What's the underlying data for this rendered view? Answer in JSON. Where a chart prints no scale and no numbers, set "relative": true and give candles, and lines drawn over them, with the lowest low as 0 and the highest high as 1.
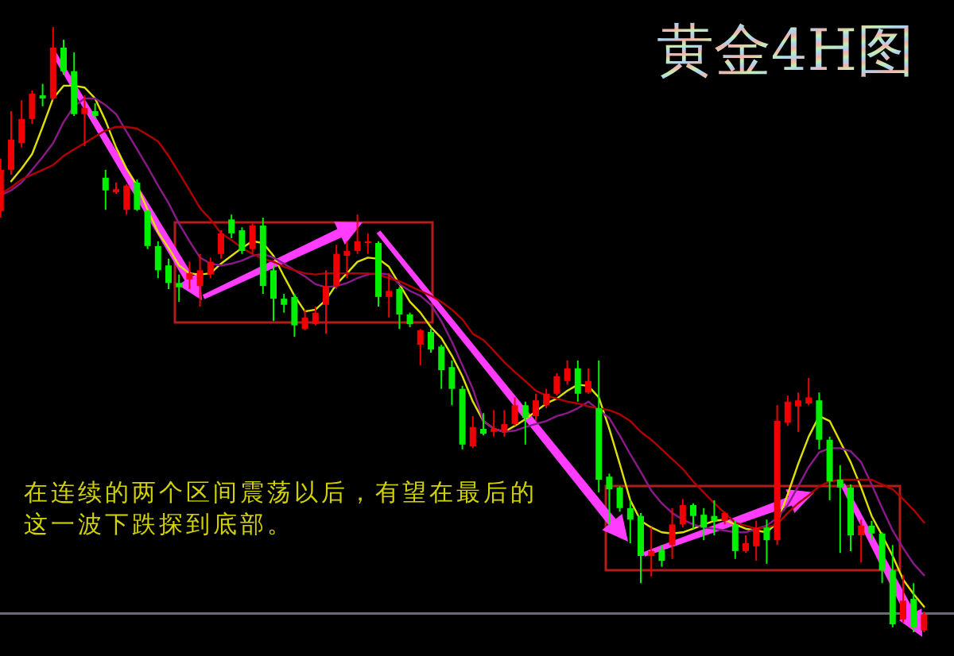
{
  "chart_data": {
    "type": "candlestick",
    "title": "黄金4H图",
    "relative": true,
    "categories": [
      null,
      null,
      null,
      null,
      null,
      null,
      null,
      null,
      null,
      null,
      null,
      null,
      null,
      null,
      null,
      null,
      null,
      null,
      null,
      null,
      null,
      null,
      null,
      null,
      null,
      null,
      null,
      null,
      null,
      null,
      null,
      null,
      null,
      null,
      null,
      null,
      null,
      null,
      null,
      null,
      null,
      null,
      null,
      null,
      null,
      null,
      null,
      null,
      null,
      null,
      null,
      null,
      null,
      null,
      null,
      null,
      null,
      null,
      null,
      null,
      null,
      null,
      null,
      null,
      null,
      null,
      null,
      null,
      null,
      null,
      null,
      null,
      null,
      null,
      null,
      null,
      null,
      null,
      null,
      null,
      null,
      null,
      null,
      null,
      null,
      null,
      null,
      null,
      null
    ],
    "ohlc": [
      [
        0.696,
        0.782,
        0.685,
        0.764
      ],
      [
        0.764,
        0.861,
        0.756,
        0.814
      ],
      [
        0.808,
        0.879,
        0.801,
        0.848
      ],
      [
        0.848,
        0.895,
        0.84,
        0.89
      ],
      [
        0.887,
        0.906,
        0.869,
        0.882
      ],
      [
        0.882,
        1.0,
        0.879,
        0.966
      ],
      [
        0.966,
        0.979,
        0.921,
        0.927
      ],
      [
        0.927,
        0.958,
        0.853,
        0.856
      ],
      [
        0.856,
        0.887,
        0.803,
        0.866
      ],
      [
        0.861,
        0.874,
        0.848,
        0.853
      ],
      [
        0.751,
        0.764,
        0.698,
        0.73
      ],
      [
        0.727,
        0.743,
        0.724,
        0.732
      ],
      [
        0.698,
        0.74,
        0.69,
        0.738
      ],
      [
        0.743,
        0.748,
        0.696,
        0.698
      ],
      [
        0.696,
        0.698,
        0.633,
        0.638
      ],
      [
        0.638,
        0.646,
        0.585,
        0.598
      ],
      [
        0.606,
        0.617,
        0.567,
        0.577
      ],
      [
        0.577,
        0.591,
        0.546,
        0.57
      ],
      [
        0.583,
        0.612,
        0.567,
        0.593
      ],
      [
        0.572,
        0.625,
        0.538,
        0.598
      ],
      [
        0.591,
        0.619,
        0.585,
        0.612
      ],
      [
        0.625,
        0.664,
        0.617,
        0.659
      ],
      [
        0.682,
        0.69,
        0.651,
        0.659
      ],
      [
        0.664,
        0.669,
        0.625,
        0.63
      ],
      [
        0.633,
        0.677,
        0.625,
        0.672
      ],
      [
        0.672,
        0.685,
        0.559,
        0.572
      ],
      [
        0.598,
        0.606,
        0.514,
        0.551
      ],
      [
        0.551,
        0.559,
        0.528,
        0.541
      ],
      [
        0.554,
        0.559,
        0.488,
        0.507
      ],
      [
        0.501,
        0.533,
        0.499,
        0.52
      ],
      [
        0.509,
        0.538,
        0.507,
        0.528
      ],
      [
        0.541,
        0.598,
        0.493,
        0.572
      ],
      [
        0.572,
        0.64,
        0.567,
        0.625
      ],
      [
        0.622,
        0.646,
        0.585,
        0.63
      ],
      [
        0.63,
        0.69,
        0.625,
        0.646
      ],
      [
        0.643,
        0.659,
        0.625,
        0.646
      ],
      [
        0.643,
        0.646,
        0.538,
        0.554
      ],
      [
        0.554,
        0.593,
        0.52,
        0.564
      ],
      [
        0.567,
        0.57,
        0.501,
        0.525
      ],
      [
        0.525,
        0.528,
        0.504,
        0.509
      ],
      [
        0.475,
        0.501,
        0.441,
        0.499
      ],
      [
        0.496,
        0.501,
        0.462,
        0.467
      ],
      [
        0.472,
        0.475,
        0.402,
        0.433
      ],
      [
        0.438,
        0.449,
        0.375,
        0.402
      ],
      [
        0.402,
        0.407,
        0.302,
        0.31
      ],
      [
        0.307,
        0.357,
        0.304,
        0.339
      ],
      [
        0.336,
        0.362,
        0.325,
        0.328
      ],
      [
        0.331,
        0.367,
        0.323,
        0.336
      ],
      [
        0.331,
        0.367,
        0.323,
        0.344
      ],
      [
        0.344,
        0.388,
        0.341,
        0.375
      ],
      [
        0.375,
        0.381,
        0.31,
        0.354
      ],
      [
        0.357,
        0.394,
        0.349,
        0.383
      ],
      [
        0.375,
        0.402,
        0.37,
        0.394
      ],
      [
        0.394,
        0.428,
        0.391,
        0.423
      ],
      [
        0.415,
        0.449,
        0.409,
        0.436
      ],
      [
        0.436,
        0.449,
        0.381,
        0.394
      ],
      [
        0.396,
        0.436,
        0.394,
        0.415
      ],
      [
        0.37,
        0.449,
        0.231,
        0.252
      ],
      [
        0.257,
        0.262,
        0.178,
        0.236
      ],
      [
        0.239,
        0.241,
        0.199,
        0.205
      ],
      [
        0.205,
        0.218,
        0.147,
        0.186
      ],
      [
        0.192,
        0.197,
        0.081,
        0.126
      ],
      [
        0.126,
        0.173,
        0.092,
        0.134
      ],
      [
        0.136,
        0.144,
        0.108,
        0.118
      ],
      [
        0.144,
        0.205,
        0.121,
        0.178
      ],
      [
        0.178,
        0.22,
        0.173,
        0.21
      ],
      [
        0.21,
        0.213,
        0.171,
        0.192
      ],
      [
        0.194,
        0.205,
        0.152,
        0.173
      ],
      [
        0.192,
        0.218,
        0.16,
        0.184
      ],
      [
        0.184,
        0.199,
        0.178,
        0.197
      ],
      [
        0.178,
        0.184,
        0.121,
        0.134
      ],
      [
        0.134,
        0.16,
        0.131,
        0.147
      ],
      [
        0.142,
        0.184,
        0.118,
        0.173
      ],
      [
        0.173,
        0.186,
        0.113,
        0.152
      ],
      [
        0.152,
        0.375,
        0.144,
        0.349
      ],
      [
        0.346,
        0.391,
        0.341,
        0.381
      ],
      [
        0.373,
        0.396,
        0.331,
        0.383
      ],
      [
        0.378,
        0.42,
        0.375,
        0.388
      ],
      [
        0.383,
        0.396,
        0.302,
        0.318
      ],
      [
        0.318,
        0.323,
        0.218,
        0.249
      ],
      [
        0.252,
        0.276,
        0.131,
        0.239
      ],
      [
        0.239,
        0.244,
        0.134,
        0.16
      ],
      [
        0.16,
        0.186,
        0.115,
        0.176
      ],
      [
        0.176,
        0.184,
        0.152,
        0.163
      ],
      [
        0.163,
        0.165,
        0.081,
        0.102
      ],
      [
        0.102,
        0.144,
        0.008,
        0.013
      ],
      [
        0.021,
        0.094,
        0.016,
        0.052
      ],
      [
        0.055,
        0.081,
        0.0,
        0.008
      ],
      [
        0.003,
        0.034,
        0.0,
        0.029
      ]
    ],
    "colors": [
      "#f00000",
      "#f00000",
      "#f00000",
      "#f00000",
      "#00f000",
      "#f00000",
      "#00f000",
      "#00f000",
      "#f00000",
      "#00f000",
      "#00f000",
      "#f00000",
      "#f00000",
      "#00f000",
      "#00f000",
      "#00f000",
      "#00f000",
      "#00f000",
      "#f00000",
      "#f00000",
      "#f00000",
      "#f00000",
      "#00f000",
      "#00f000",
      "#f00000",
      "#00f000",
      "#00f000",
      "#00f000",
      "#00f000",
      "#f00000",
      "#f00000",
      "#f00000",
      "#f00000",
      "#f00000",
      "#f00000",
      "#f00000",
      "#00f000",
      "#f00000",
      "#00f000",
      "#00f000",
      "#f00000",
      "#00f000",
      "#00f000",
      "#00f000",
      "#00f000",
      "#f00000",
      "#00f000",
      "#f00000",
      "#f00000",
      "#f00000",
      "#00f000",
      "#f00000",
      "#f00000",
      "#f00000",
      "#f00000",
      "#00f000",
      "#f00000",
      "#00f000",
      "#00f000",
      "#00f000",
      "#00f000",
      "#00f000",
      "#f00000",
      "#00f000",
      "#f00000",
      "#f00000",
      "#00f000",
      "#00f000",
      "#00f000",
      "#f00000",
      "#00f000",
      "#f00000",
      "#f00000",
      "#00f000",
      "#f00000",
      "#f00000",
      "#f00000",
      "#f00000",
      "#00f000",
      "#00f000",
      "#00f000",
      "#00f000",
      "#f00000",
      "#00f000",
      "#00f000",
      "#00f000",
      "#f00000",
      "#00f000",
      "#f00000"
    ],
    "series": [
      {
        "type": "line",
        "color": "#e0e000",
        "values": [
          null,
          0.745,
          0.766,
          0.79,
          0.835,
          0.882,
          0.903,
          0.903,
          0.9,
          0.882,
          0.845,
          0.801,
          0.766,
          0.738,
          0.698,
          0.661,
          0.635,
          0.606,
          0.593,
          0.591,
          0.593,
          0.609,
          0.622,
          0.635,
          0.646,
          0.643,
          0.622,
          0.588,
          0.556,
          0.53,
          0.533,
          0.549,
          0.575,
          0.593,
          0.612,
          0.619,
          0.617,
          0.604,
          0.575,
          0.546,
          0.528,
          0.504,
          0.486,
          0.457,
          0.423,
          0.381,
          0.349,
          0.336,
          0.331,
          0.341,
          0.352,
          0.365,
          0.378,
          0.386,
          0.399,
          0.409,
          0.407,
          0.388,
          0.336,
          0.278,
          0.218,
          0.184,
          0.173,
          0.165,
          0.163,
          0.165,
          0.171,
          0.178,
          0.184,
          0.186,
          0.178,
          0.171,
          0.168,
          0.165,
          0.181,
          0.228,
          0.278,
          0.323,
          0.357,
          0.349,
          0.315,
          0.281,
          0.239,
          0.192,
          0.16,
          0.126,
          0.087,
          0.063,
          0.042
        ]
      },
      {
        "type": "line",
        "color": "#8a1a8a",
        "values": [
          0.722,
          0.73,
          0.743,
          0.764,
          0.785,
          0.808,
          0.843,
          0.869,
          0.882,
          0.882,
          0.871,
          0.856,
          0.827,
          0.798,
          0.769,
          0.738,
          0.709,
          0.675,
          0.646,
          0.619,
          0.609,
          0.606,
          0.609,
          0.614,
          0.622,
          0.625,
          0.619,
          0.609,
          0.598,
          0.588,
          0.575,
          0.57,
          0.572,
          0.577,
          0.585,
          0.591,
          0.593,
          0.591,
          0.575,
          0.564,
          0.556,
          0.541,
          0.514,
          0.48,
          0.441,
          0.402,
          0.349,
          0.336,
          0.331,
          0.333,
          0.339,
          0.344,
          0.349,
          0.357,
          0.362,
          0.37,
          0.381,
          0.367,
          0.354,
          0.325,
          0.294,
          0.265,
          0.234,
          0.213,
          0.197,
          0.186,
          0.178,
          0.173,
          0.171,
          0.168,
          0.165,
          0.165,
          0.171,
          0.176,
          0.189,
          0.21,
          0.241,
          0.273,
          0.297,
          0.304,
          0.304,
          0.299,
          0.281,
          0.244,
          0.205,
          0.168,
          0.139,
          0.113,
          0.094
        ]
      },
      {
        "type": "line",
        "color": "#b00000",
        "values": [
          0.724,
          0.735,
          0.748,
          0.756,
          0.764,
          0.772,
          0.787,
          0.798,
          0.808,
          0.819,
          0.829,
          0.835,
          0.835,
          0.832,
          0.822,
          0.811,
          0.787,
          0.759,
          0.73,
          0.701,
          0.682,
          0.659,
          0.648,
          0.635,
          0.625,
          0.617,
          0.612,
          0.604,
          0.598,
          0.593,
          0.591,
          0.593,
          0.593,
          0.593,
          0.593,
          0.593,
          0.591,
          0.585,
          0.58,
          0.572,
          0.564,
          0.556,
          0.546,
          0.533,
          0.517,
          0.493,
          0.483,
          0.465,
          0.446,
          0.43,
          0.415,
          0.399,
          0.391,
          0.386,
          0.381,
          0.378,
          0.373,
          0.37,
          0.367,
          0.36,
          0.349,
          0.331,
          0.318,
          0.302,
          0.286,
          0.27,
          0.249,
          0.231,
          0.213,
          0.197,
          0.181,
          0.176,
          0.171,
          0.173,
          0.178,
          0.197,
          0.213,
          0.226,
          0.241,
          0.249,
          0.252,
          0.252,
          0.252,
          0.252,
          0.244,
          0.236,
          0.22,
          0.202,
          0.181
        ]
      }
    ],
    "ref_lines": [
      {
        "axis": "y",
        "value": 0.031,
        "color": "#6a6a78"
      }
    ],
    "annotations": [
      "在连续的两个区间震荡以后，有望在最后的这一波下跌探到底部。"
    ]
  }
}
